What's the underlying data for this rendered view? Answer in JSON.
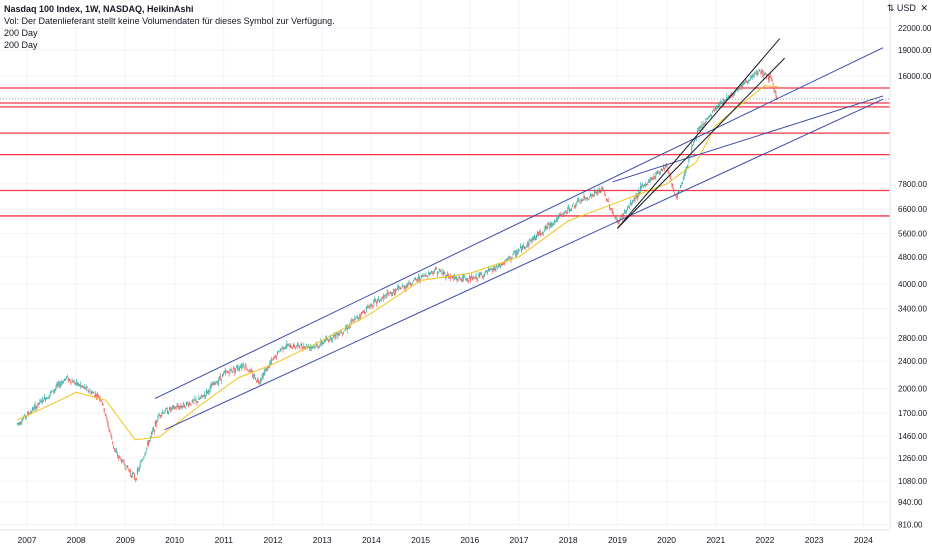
{
  "header": {
    "title": "Nasdaq 100 Index, 1W, NASDAQ, HeikinAshi",
    "volume_note": "Vol: Der Datenlieferant stellt keine Volumendaten für dieses Symbol zur Verfügung.",
    "indicator_1": "200 Day",
    "indicator_2": "200 Day"
  },
  "price_axis": {
    "currency_label": "USD",
    "scale_mode_icon": "log-scale-icon",
    "close_icon": "close-icon"
  },
  "chart_data": {
    "type": "candlestick",
    "scale": "log",
    "ylim": [
      780,
      26500
    ],
    "x_ticks": [
      "2007",
      "2008",
      "2009",
      "2010",
      "2011",
      "2012",
      "2013",
      "2014",
      "2015",
      "2016",
      "2017",
      "2018",
      "2019",
      "2020",
      "2021",
      "2022",
      "2023",
      "2024"
    ],
    "y_ticks": [
      "22000.00",
      "19000.00",
      "16000.00",
      "7800.00",
      "6600.00",
      "5600.00",
      "4800.00",
      "4000.00",
      "3400.00",
      "2800.00",
      "2400.00",
      "2000.00",
      "1700.00",
      "1460.00",
      "1260.00",
      "1080.00",
      "940.00",
      "810.00"
    ],
    "approx_weekly_close_path": [
      {
        "x": "2006.8",
        "y": 1580
      },
      {
        "x": "2007.5",
        "y": 1950
      },
      {
        "x": "2007.8",
        "y": 2150
      },
      {
        "x": "2008.5",
        "y": 1880
      },
      {
        "x": "2008.8",
        "y": 1300
      },
      {
        "x": "2009.2",
        "y": 1100
      },
      {
        "x": "2009.7",
        "y": 1700
      },
      {
        "x": "2010.5",
        "y": 1850
      },
      {
        "x": "2011.0",
        "y": 2200
      },
      {
        "x": "2011.4",
        "y": 2350
      },
      {
        "x": "2011.7",
        "y": 2100
      },
      {
        "x": "2012.2",
        "y": 2650
      },
      {
        "x": "2012.9",
        "y": 2650
      },
      {
        "x": "2013.5",
        "y": 3000
      },
      {
        "x": "2014.0",
        "y": 3500
      },
      {
        "x": "2014.6",
        "y": 3900
      },
      {
        "x": "2015.3",
        "y": 4400
      },
      {
        "x": "2015.7",
        "y": 4150
      },
      {
        "x": "2016.1",
        "y": 4150
      },
      {
        "x": "2016.6",
        "y": 4500
      },
      {
        "x": "2017.0",
        "y": 5000
      },
      {
        "x": "2017.6",
        "y": 5900
      },
      {
        "x": "2018.2",
        "y": 6900
      },
      {
        "x": "2018.7",
        "y": 7500
      },
      {
        "x": "2019.0",
        "y": 6000
      },
      {
        "x": "2019.5",
        "y": 7600
      },
      {
        "x": "2020.0",
        "y": 8900
      },
      {
        "x": "2020.2",
        "y": 7000
      },
      {
        "x": "2020.6",
        "y": 10800
      },
      {
        "x": "2021.0",
        "y": 12900
      },
      {
        "x": "2021.5",
        "y": 14900
      },
      {
        "x": "2021.9",
        "y": 16500
      },
      {
        "x": "2022.1",
        "y": 15800
      },
      {
        "x": "2022.25",
        "y": 13800
      }
    ],
    "moving_average_200_day": [
      {
        "x": "2006.8",
        "y": 1620
      },
      {
        "x": "2007.5",
        "y": 1800
      },
      {
        "x": "2008.0",
        "y": 1950
      },
      {
        "x": "2008.6",
        "y": 1850
      },
      {
        "x": "2009.2",
        "y": 1420
      },
      {
        "x": "2009.7",
        "y": 1450
      },
      {
        "x": "2010.5",
        "y": 1780
      },
      {
        "x": "2011.3",
        "y": 2150
      },
      {
        "x": "2012.0",
        "y": 2350
      },
      {
        "x": "2013.0",
        "y": 2750
      },
      {
        "x": "2014.0",
        "y": 3300
      },
      {
        "x": "2015.0",
        "y": 4100
      },
      {
        "x": "2016.0",
        "y": 4300
      },
      {
        "x": "2017.0",
        "y": 4800
      },
      {
        "x": "2018.0",
        "y": 6100
      },
      {
        "x": "2019.0",
        "y": 6900
      },
      {
        "x": "2020.0",
        "y": 7800
      },
      {
        "x": "2020.6",
        "y": 9000
      },
      {
        "x": "2021.0",
        "y": 11500
      },
      {
        "x": "2021.5",
        "y": 13200
      },
      {
        "x": "2022.0",
        "y": 15000
      },
      {
        "x": "2022.25",
        "y": 14900
      }
    ],
    "horizontal_levels": [
      {
        "value": "14757.32",
        "color": "#f23645",
        "highlight": true
      },
      {
        "value": "13709.09",
        "color": "#9598a1",
        "highlight": false,
        "dotted": true
      },
      {
        "value": "13356.87",
        "color": "#f23645",
        "highlight": true
      },
      {
        "value": "13018.98",
        "color": "#f23645",
        "highlight": true
      },
      {
        "value": "10930.19",
        "color": "#f23645",
        "highlight": true
      },
      {
        "value": "9475.51",
        "color": "#f23645",
        "highlight": true
      },
      {
        "value": "7461.14",
        "color": "#f23645",
        "highlight": true
      },
      {
        "value": "6300.68",
        "color": "#f23645",
        "highlight": true
      }
    ],
    "trend_lines": [
      {
        "color": "#3949ab",
        "from": {
          "x": "2009.6",
          "y": 1870
        },
        "to": {
          "x": "2024.4",
          "y": 19300
        }
      },
      {
        "color": "#3949ab",
        "from": {
          "x": "2009.8",
          "y": 1520
        },
        "to": {
          "x": "2024.4",
          "y": 13700
        }
      },
      {
        "color": "#3949ab",
        "from": {
          "x": "2018.9",
          "y": 7900
        },
        "to": {
          "x": "2024.4",
          "y": 14000
        }
      },
      {
        "color": "#131722",
        "from": {
          "x": "2019.0",
          "y": 5800
        },
        "to": {
          "x": "2022.3",
          "y": 20500
        }
      },
      {
        "color": "#131722",
        "from": {
          "x": "2019.0",
          "y": 5800
        },
        "to": {
          "x": "2022.4",
          "y": 18000
        }
      }
    ],
    "colors": {
      "up": "#26a69a",
      "down": "#ef5350",
      "ma": "#f0c419",
      "level": "#f23645",
      "channel": "#3949ab"
    }
  }
}
